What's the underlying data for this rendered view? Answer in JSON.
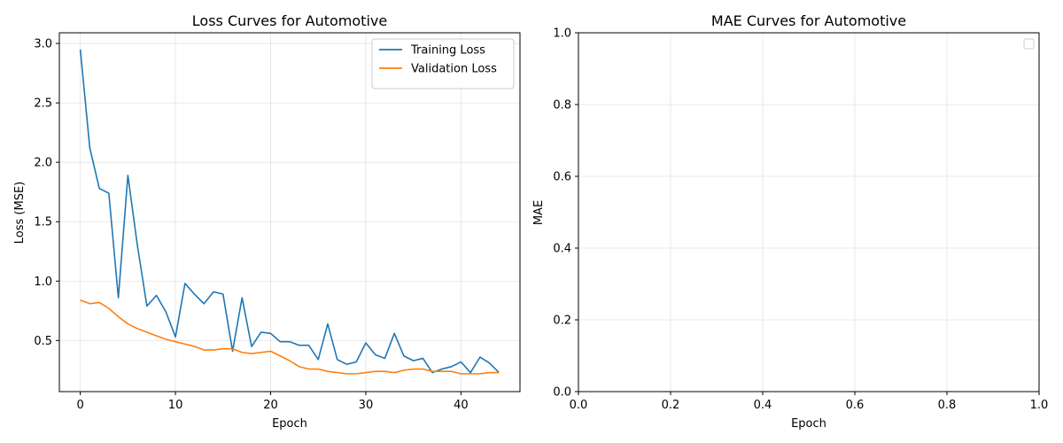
{
  "chart_data": [
    {
      "type": "line",
      "title": "Loss Curves for Automotive",
      "xlabel": "Epoch",
      "ylabel": "Loss (MSE)",
      "xlim": [
        -2.2,
        46.2
      ],
      "ylim": [
        0.07,
        3.09
      ],
      "xticks": [
        0,
        10,
        20,
        30,
        40
      ],
      "yticks": [
        0.5,
        1.0,
        1.5,
        2.0,
        2.5,
        3.0
      ],
      "ytick_labels": [
        "0.5",
        "1.0",
        "1.5",
        "2.0",
        "2.5",
        "3.0"
      ],
      "grid": true,
      "legend": "upper right",
      "series": [
        {
          "name": "Training Loss",
          "color": "#1f77b4",
          "x": [
            0,
            1,
            2,
            3,
            4,
            5,
            6,
            7,
            8,
            9,
            10,
            11,
            12,
            13,
            14,
            15,
            16,
            17,
            18,
            19,
            20,
            21,
            22,
            23,
            24,
            25,
            26,
            27,
            28,
            29,
            30,
            31,
            32,
            33,
            34,
            35,
            36,
            37,
            38,
            39,
            40,
            41,
            42,
            43,
            44
          ],
          "values": [
            2.95,
            2.12,
            1.78,
            1.74,
            0.86,
            1.89,
            1.3,
            0.79,
            0.88,
            0.74,
            0.53,
            0.98,
            0.89,
            0.81,
            0.91,
            0.89,
            0.41,
            0.86,
            0.45,
            0.57,
            0.56,
            0.49,
            0.49,
            0.46,
            0.46,
            0.34,
            0.64,
            0.34,
            0.3,
            0.32,
            0.48,
            0.38,
            0.35,
            0.56,
            0.37,
            0.33,
            0.35,
            0.23,
            0.26,
            0.28,
            0.32,
            0.23,
            0.36,
            0.31,
            0.23
          ]
        },
        {
          "name": "Validation Loss",
          "color": "#ff7f0e",
          "x": [
            0,
            1,
            2,
            3,
            4,
            5,
            6,
            7,
            8,
            9,
            10,
            11,
            12,
            13,
            14,
            15,
            16,
            17,
            18,
            19,
            20,
            21,
            22,
            23,
            24,
            25,
            26,
            27,
            28,
            29,
            30,
            31,
            32,
            33,
            34,
            35,
            36,
            37,
            38,
            39,
            40,
            41,
            42,
            43,
            44
          ],
          "values": [
            0.84,
            0.81,
            0.82,
            0.77,
            0.7,
            0.64,
            0.6,
            0.57,
            0.54,
            0.51,
            0.49,
            0.47,
            0.45,
            0.42,
            0.42,
            0.43,
            0.43,
            0.4,
            0.39,
            0.4,
            0.41,
            0.37,
            0.33,
            0.28,
            0.26,
            0.26,
            0.24,
            0.23,
            0.22,
            0.22,
            0.23,
            0.24,
            0.24,
            0.23,
            0.25,
            0.26,
            0.26,
            0.24,
            0.24,
            0.24,
            0.22,
            0.22,
            0.22,
            0.23,
            0.23
          ]
        }
      ]
    },
    {
      "type": "line",
      "title": "MAE Curves for Automotive",
      "xlabel": "Epoch",
      "ylabel": "MAE",
      "xlim": [
        0,
        1
      ],
      "ylim": [
        0,
        1
      ],
      "xticks": [
        0,
        0.2,
        0.4,
        0.6,
        0.8,
        1.0
      ],
      "xtick_labels": [
        "0.0",
        "0.2",
        "0.4",
        "0.6",
        "0.8",
        "1.0"
      ],
      "yticks": [
        0,
        0.2,
        0.4,
        0.6,
        0.8,
        1.0
      ],
      "ytick_labels": [
        "0.0",
        "0.2",
        "0.4",
        "0.6",
        "0.8",
        "1.0"
      ],
      "grid": true,
      "legend": "upper right",
      "series": []
    }
  ]
}
